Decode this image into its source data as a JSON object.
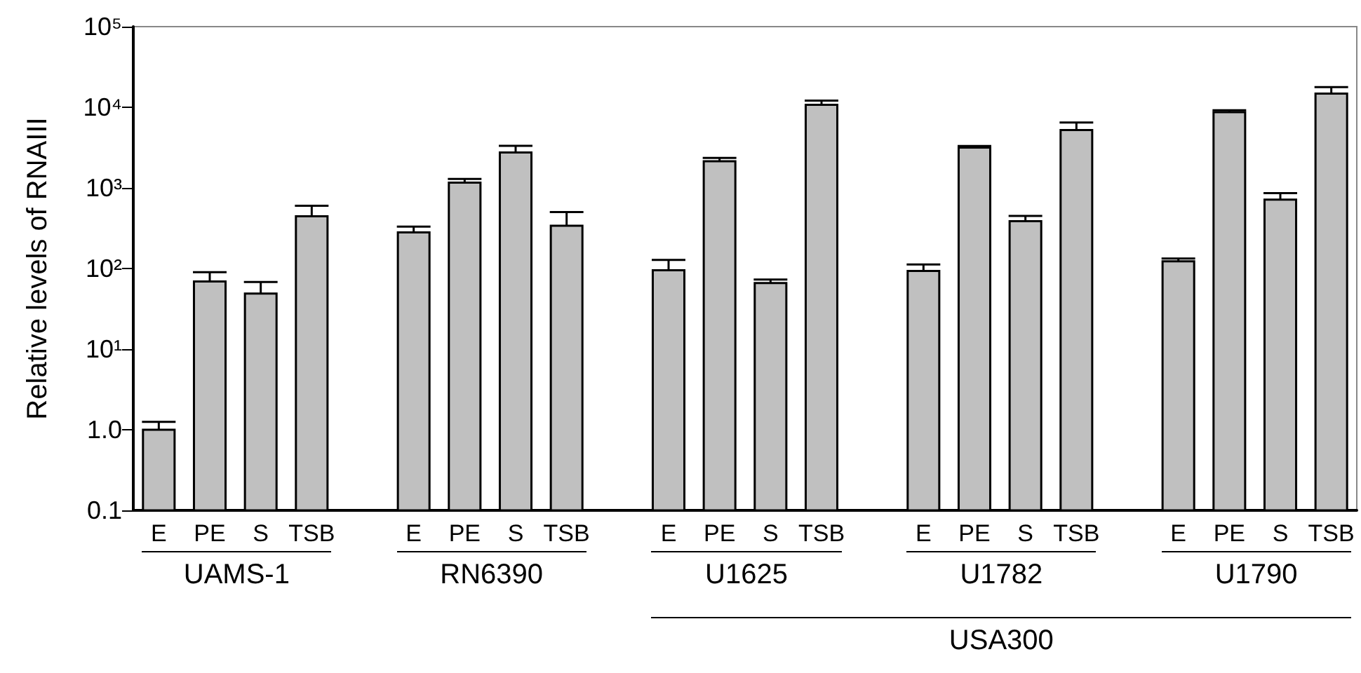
{
  "chart_data": {
    "type": "bar",
    "ylabel": "Relative levels of RNAIII",
    "categories": [
      "E",
      "PE",
      "S",
      "TSB",
      null,
      "E",
      "PE",
      "S",
      "TSB",
      null,
      "E",
      "PE",
      "S",
      "TSB",
      null,
      "E",
      "PE",
      "S",
      "TSB",
      null,
      "E",
      "PE",
      "S",
      "TSB"
    ],
    "values": [
      1.0,
      69,
      49,
      444,
      null,
      281,
      1160,
      2750,
      339,
      null,
      95,
      2140,
      66,
      10700,
      null,
      93,
      3160,
      387,
      5220,
      null,
      123,
      8700,
      716,
      14800
    ],
    "errors": [
      [
        1.0,
        1.25
      ],
      [
        69,
        90
      ],
      [
        49,
        68
      ],
      [
        444,
        600
      ],
      null,
      [
        281,
        330
      ],
      [
        1160,
        1290
      ],
      [
        2750,
        3330
      ],
      [
        339,
        500
      ],
      null,
      [
        95,
        128
      ],
      [
        2140,
        2350
      ],
      [
        66,
        73
      ],
      [
        10700,
        12100
      ],
      null,
      [
        93,
        112
      ],
      [
        3160,
        3300
      ],
      [
        387,
        449
      ],
      [
        5220,
        6460
      ],
      null,
      [
        123,
        133
      ],
      [
        8700,
        9200
      ],
      [
        716,
        862
      ],
      [
        14800,
        17800
      ]
    ],
    "color": "#c0c0c0",
    "log": "y",
    "ylim": [
      0.1,
      100000
    ],
    "yticks": [
      {
        "value": 0.1,
        "label": "0.1"
      },
      {
        "value": 1,
        "label": "1.0"
      },
      {
        "value": 10,
        "label": "10¹"
      },
      {
        "value": 100,
        "label": "10²"
      },
      {
        "value": 1000,
        "label": "10³"
      },
      {
        "value": 10000,
        "label": "10⁴"
      },
      {
        "value": 100000,
        "label": "10⁵"
      }
    ],
    "grid": false,
    "annotations": [
      "UAMS-1",
      "RN6390",
      "U1625",
      "U1782",
      "U1790",
      "USA300"
    ]
  }
}
